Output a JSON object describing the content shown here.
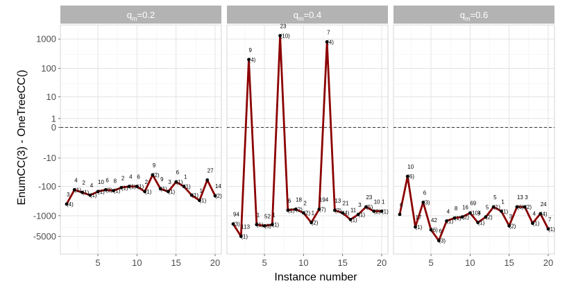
{
  "chart_data": {
    "type": "line",
    "xlabel": "Instance number",
    "ylabel": "EnumCC(3) - OneTreeCC()",
    "y_scale": "symlog",
    "yticks": [
      -5000,
      -1000,
      -100,
      -10,
      0,
      1,
      10,
      100,
      1000
    ],
    "ytick_labels": [
      "-5000",
      "-1000",
      "-100",
      "-10",
      "0",
      "1",
      "10",
      "100",
      "1000"
    ],
    "xticks": [
      5,
      10,
      15,
      20
    ],
    "xtick_labels": [
      "5",
      "10",
      "15",
      "20"
    ],
    "xlim": [
      0.2,
      20.8
    ],
    "reference_line": {
      "y": 0,
      "style": "dashed"
    },
    "grid": true,
    "line_color": "#8b0000",
    "panel_strip_color": "#b3b3b3",
    "panels": [
      {
        "label": "q",
        "label_sub": "m",
        "label_suffix": "=0.2",
        "x": [
          1,
          2,
          3,
          4,
          5,
          6,
          7,
          8,
          9,
          10,
          11,
          12,
          13,
          14,
          15,
          16,
          17,
          18,
          19,
          20
        ],
        "y": [
          -400,
          -130,
          -160,
          -200,
          -150,
          -130,
          -140,
          -110,
          -100,
          -100,
          -150,
          -40,
          -120,
          -150,
          -70,
          -100,
          -200,
          -300,
          -60,
          -210
        ],
        "top_labels": [
          "3",
          "4",
          "2",
          "4",
          "10",
          "6",
          "8",
          "2",
          "4",
          "6",
          "2",
          "9",
          "9",
          "3",
          "6",
          "1",
          "",
          "1",
          "27",
          "14"
        ],
        "bottom_labels": [
          "(4)",
          "(1)",
          "(1)",
          "(1)",
          "(1)",
          "(2)",
          "(1)",
          "(1)",
          "(1)",
          "(1)",
          "(1)",
          "(2)",
          "(1)",
          "(1)",
          "(1)",
          "(1)",
          "(1)",
          "(1)",
          "",
          "(2)"
        ]
      },
      {
        "label": "q",
        "label_sub": "m",
        "label_suffix": "=0.4",
        "x": [
          1,
          2,
          3,
          4,
          5,
          6,
          7,
          8,
          9,
          10,
          11,
          12,
          13,
          14,
          15,
          16,
          17,
          18,
          19,
          20
        ],
        "y": [
          -1900,
          -5000,
          200,
          -2000,
          -2200,
          -2000,
          1300,
          -650,
          -600,
          -800,
          -1700,
          -600,
          800,
          -650,
          -800,
          -1350,
          -900,
          -500,
          -700,
          -700
        ],
        "top_labels": [
          "94",
          "113",
          "9",
          "1",
          "52",
          "1",
          "23",
          "6",
          "18",
          "2",
          "1",
          "194",
          "7",
          "13",
          "21",
          "11",
          "3",
          "23",
          "10",
          "1"
        ],
        "bottom_labels": [
          "(3)",
          "(1)",
          "(4)",
          "(1)",
          "(6)",
          "(1)",
          "(10)",
          "(1)",
          "(2)",
          "(2)",
          "(2)",
          "(7)",
          "(4)",
          "(2)",
          "(4)",
          "(1)",
          "(1)",
          "(5)",
          "(2)",
          "(1)"
        ]
      },
      {
        "label": "q",
        "label_sub": "m",
        "label_suffix": "=0.6",
        "x": [
          1,
          2,
          3,
          4,
          5,
          6,
          7,
          8,
          9,
          10,
          11,
          12,
          13,
          14,
          15,
          16,
          17,
          18,
          19,
          20
        ],
        "y": [
          -900,
          -45,
          -2400,
          -350,
          -3000,
          -7000,
          -1500,
          -1200,
          -1100,
          -800,
          -1700,
          -1100,
          -500,
          -700,
          -2200,
          -500,
          -500,
          -1800,
          -850,
          -2800
        ],
        "top_labels": [
          "6",
          "10",
          "17",
          "6",
          "42",
          "6",
          "4",
          "8",
          "16",
          "69",
          "4",
          "5",
          "5",
          "1",
          "3",
          "13",
          "3",
          "4",
          "24",
          "7"
        ],
        "bottom_labels": [
          "",
          "(6)",
          "(1)",
          "(3)",
          "(6)",
          "(3)",
          "(1)",
          "(1)",
          "(2)",
          "(10)",
          "(1)",
          "(2)",
          "(1)",
          "(1)",
          "(2)",
          "(6)",
          "(2)",
          "(1)",
          "(4)",
          "(1)"
        ]
      }
    ]
  }
}
